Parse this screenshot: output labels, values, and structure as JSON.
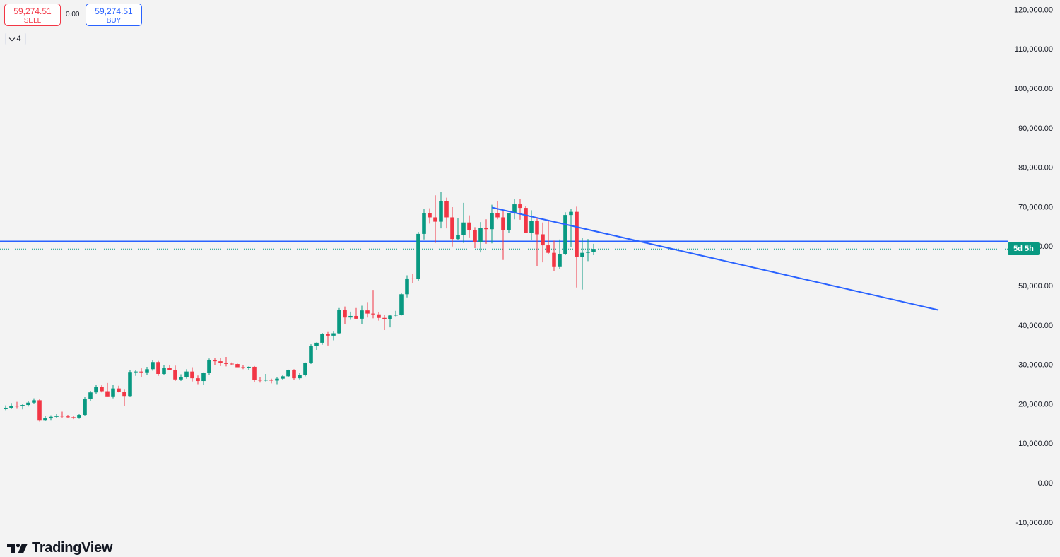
{
  "toolbar": {
    "sell_price": "59,274.51",
    "sell_label": "SELL",
    "spread": "0.00",
    "buy_price": "59,274.51",
    "buy_label": "BUY",
    "collapse_count": "4"
  },
  "countdown": "5d 5h",
  "branding": "TradingView",
  "colors": {
    "up": "#089981",
    "down": "#f23645",
    "line": "#2962ff",
    "background": "#f3f3f3"
  },
  "chart_data": {
    "type": "candlestick",
    "interval": "weekly",
    "y_axis": {
      "min": -10000,
      "max": 120000,
      "ticks": [
        "120,000.00",
        "110,000.00",
        "100,000.00",
        "90,000.00",
        "80,000.00",
        "70,000.00",
        "60,000.00",
        "50,000.00",
        "40,000.00",
        "30,000.00",
        "20,000.00",
        "10,000.00",
        "0.00",
        "-10,000.00"
      ]
    },
    "current_price": 59274.51,
    "horizontal_line": 61200,
    "trendline": {
      "from": {
        "bar": 86,
        "price": 69800
      },
      "to": {
        "bar": 165,
        "price": 43800
      }
    },
    "candles": [
      [
        18800,
        19600,
        18400,
        19000
      ],
      [
        19000,
        20200,
        18700,
        19500
      ],
      [
        19500,
        20500,
        18900,
        19400
      ],
      [
        19400,
        20000,
        18600,
        19700
      ],
      [
        19700,
        20700,
        19300,
        20300
      ],
      [
        20300,
        21400,
        20000,
        20900
      ],
      [
        20900,
        21200,
        15500,
        15900
      ],
      [
        15900,
        17000,
        15600,
        16300
      ],
      [
        16300,
        17100,
        15900,
        16700
      ],
      [
        16700,
        17500,
        16400,
        17000
      ],
      [
        17000,
        18000,
        16500,
        16800
      ],
      [
        16800,
        17200,
        16300,
        16600
      ],
      [
        16600,
        17000,
        16100,
        16500
      ],
      [
        16500,
        17400,
        16200,
        17200
      ],
      [
        17200,
        21700,
        16900,
        21300
      ],
      [
        21300,
        23300,
        20700,
        22900
      ],
      [
        22900,
        24800,
        22500,
        24200
      ],
      [
        24200,
        24700,
        22900,
        23200
      ],
      [
        23200,
        25300,
        21900,
        21900
      ],
      [
        21900,
        24800,
        21400,
        23900
      ],
      [
        23900,
        24600,
        22900,
        23000
      ],
      [
        23000,
        23600,
        19400,
        22000
      ],
      [
        22000,
        28500,
        21700,
        28100
      ],
      [
        28100,
        28500,
        27100,
        28200
      ],
      [
        28200,
        29000,
        26800,
        28000
      ],
      [
        28000,
        29400,
        27300,
        28800
      ],
      [
        28800,
        31000,
        28400,
        30600
      ],
      [
        30600,
        30900,
        27100,
        27600
      ],
      [
        27600,
        29800,
        27300,
        29200
      ],
      [
        29200,
        29900,
        28700,
        28600
      ],
      [
        28600,
        29700,
        25800,
        26200
      ],
      [
        26200,
        27500,
        25800,
        26700
      ],
      [
        26700,
        28800,
        26400,
        28200
      ],
      [
        28200,
        29300,
        25700,
        26500
      ],
      [
        26500,
        27200,
        25000,
        25800
      ],
      [
        25800,
        28000,
        24900,
        27900
      ],
      [
        27900,
        31500,
        27400,
        31100
      ],
      [
        31100,
        31700,
        29800,
        30800
      ],
      [
        30800,
        31700,
        29600,
        30300
      ],
      [
        30300,
        31900,
        29500,
        30200
      ],
      [
        30200,
        30500,
        29900,
        30100
      ],
      [
        30100,
        30200,
        29300,
        29300
      ],
      [
        29300,
        29800,
        28800,
        29100
      ],
      [
        29100,
        29500,
        28500,
        29400
      ],
      [
        29400,
        29600,
        25600,
        26100
      ],
      [
        26100,
        26800,
        25400,
        26000
      ],
      [
        26000,
        27600,
        25700,
        26100
      ],
      [
        26100,
        26400,
        25200,
        25900
      ],
      [
        25900,
        26700,
        25000,
        26400
      ],
      [
        26400,
        27400,
        26100,
        27000
      ],
      [
        27000,
        28700,
        26700,
        28500
      ],
      [
        28500,
        28800,
        26100,
        26500
      ],
      [
        26500,
        27900,
        26200,
        27300
      ],
      [
        27300,
        30500,
        27000,
        30300
      ],
      [
        30300,
        35100,
        30100,
        34700
      ],
      [
        34700,
        35600,
        33700,
        35500
      ],
      [
        35500,
        38000,
        35000,
        37700
      ],
      [
        37700,
        38400,
        34800,
        37300
      ],
      [
        37300,
        38500,
        36100,
        37900
      ],
      [
        37900,
        44300,
        37800,
        43800
      ],
      [
        43800,
        44700,
        40200,
        41900
      ],
      [
        41900,
        43400,
        41300,
        42300
      ],
      [
        42300,
        44300,
        41400,
        41600
      ],
      [
        41600,
        44900,
        40300,
        43700
      ],
      [
        43700,
        45800,
        41900,
        42900
      ],
      [
        42900,
        48900,
        41700,
        42700
      ],
      [
        42700,
        43300,
        41100,
        41800
      ],
      [
        41800,
        42500,
        38700,
        41400
      ],
      [
        41400,
        42500,
        39400,
        42400
      ],
      [
        42400,
        43600,
        42200,
        42600
      ],
      [
        42600,
        48000,
        42400,
        47800
      ],
      [
        47800,
        52600,
        47000,
        51800
      ],
      [
        51800,
        53000,
        50700,
        51700
      ],
      [
        51700,
        63600,
        51100,
        63100
      ],
      [
        63100,
        69500,
        61700,
        68300
      ],
      [
        68300,
        69600,
        65700,
        67300
      ],
      [
        67300,
        72900,
        60800,
        66200
      ],
      [
        66200,
        73800,
        64500,
        71500
      ],
      [
        71500,
        72300,
        64500,
        67300
      ],
      [
        67300,
        69900,
        59900,
        61800
      ],
      [
        61800,
        67100,
        61500,
        62900
      ],
      [
        62900,
        71000,
        60800,
        66000
      ],
      [
        66000,
        67800,
        62200,
        64000
      ],
      [
        64000,
        64800,
        59500,
        61000
      ],
      [
        61000,
        66100,
        58400,
        64600
      ],
      [
        64600,
        66800,
        60600,
        64300
      ],
      [
        64300,
        70500,
        60700,
        68400
      ],
      [
        68400,
        71400,
        66800,
        67300
      ],
      [
        67300,
        69200,
        56500,
        64000
      ],
      [
        64000,
        68000,
        63300,
        68400
      ],
      [
        68400,
        71900,
        66800,
        70600
      ],
      [
        70600,
        71900,
        66700,
        69700
      ],
      [
        69700,
        70100,
        64600,
        63400
      ],
      [
        63400,
        69100,
        61500,
        66400
      ],
      [
        66400,
        67200,
        55000,
        63000
      ],
      [
        63000,
        66000,
        55900,
        60200
      ],
      [
        60200,
        66500,
        58000,
        58300
      ],
      [
        58300,
        61400,
        53600,
        54700
      ],
      [
        54700,
        61700,
        54200,
        57900
      ],
      [
        57900,
        68600,
        57700,
        67900
      ],
      [
        67900,
        69500,
        59700,
        68700
      ],
      [
        68700,
        70000,
        49500,
        57300
      ],
      [
        57300,
        62000,
        49000,
        58300
      ],
      [
        58300,
        61800,
        56200,
        58600
      ],
      [
        58600,
        60600,
        57700,
        59300
      ]
    ]
  }
}
